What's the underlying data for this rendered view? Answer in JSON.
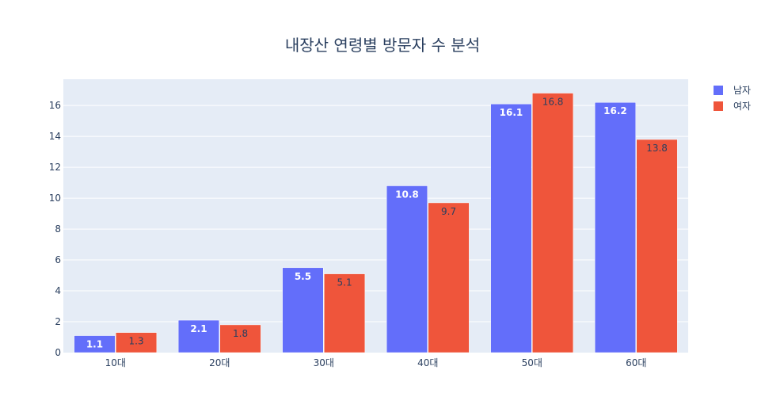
{
  "chart_data": {
    "type": "bar",
    "title": "내장산 연령별 방문자 수 분석",
    "categories": [
      "10대",
      "20대",
      "30대",
      "40대",
      "50대",
      "60대"
    ],
    "series": [
      {
        "name": "남자",
        "color": "#636efa",
        "values": [
          1.1,
          2.1,
          5.5,
          10.8,
          16.1,
          16.2
        ]
      },
      {
        "name": "여자",
        "color": "#ef553b",
        "values": [
          1.3,
          1.8,
          5.1,
          9.7,
          16.8,
          13.8
        ]
      }
    ],
    "ylim": [
      0,
      17.7
    ],
    "yticks": [
      0,
      2,
      4,
      6,
      8,
      10,
      12,
      14,
      16
    ],
    "grid": true,
    "legend": "top-right",
    "plot_bg": "#e5ecf6"
  }
}
